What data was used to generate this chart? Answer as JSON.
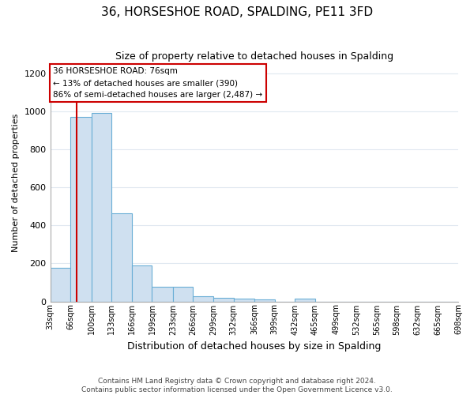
{
  "title": "36, HORSESHOE ROAD, SPALDING, PE11 3FD",
  "subtitle": "Size of property relative to detached houses in Spalding",
  "xlabel": "Distribution of detached houses by size in Spalding",
  "ylabel": "Number of detached properties",
  "footer_line1": "Contains HM Land Registry data © Crown copyright and database right 2024.",
  "footer_line2": "Contains public sector information licensed under the Open Government Licence v3.0.",
  "bar_color": "#cfe0f0",
  "bar_edge_color": "#6aaed6",
  "red_line_x": 76,
  "annotation_text": "36 HORSESHOE ROAD: 76sqm\n← 13% of detached houses are smaller (390)\n86% of semi-detached houses are larger (2,487) →",
  "annotation_box_color": "#ffffff",
  "annotation_edge_color": "#cc0000",
  "bin_edges": [
    33,
    66,
    100,
    133,
    166,
    199,
    233,
    266,
    299,
    332,
    366,
    399,
    432,
    465,
    499,
    532,
    565,
    598,
    632,
    665,
    698
  ],
  "bar_heights": [
    175,
    970,
    990,
    465,
    190,
    75,
    75,
    25,
    20,
    15,
    10,
    0,
    15,
    0,
    0,
    0,
    0,
    0,
    0,
    0
  ],
  "xlim": [
    33,
    698
  ],
  "ylim": [
    0,
    1250
  ],
  "yticks": [
    0,
    200,
    400,
    600,
    800,
    1000,
    1200
  ],
  "background_color": "#ffffff",
  "grid_color": "#e0e8f0"
}
